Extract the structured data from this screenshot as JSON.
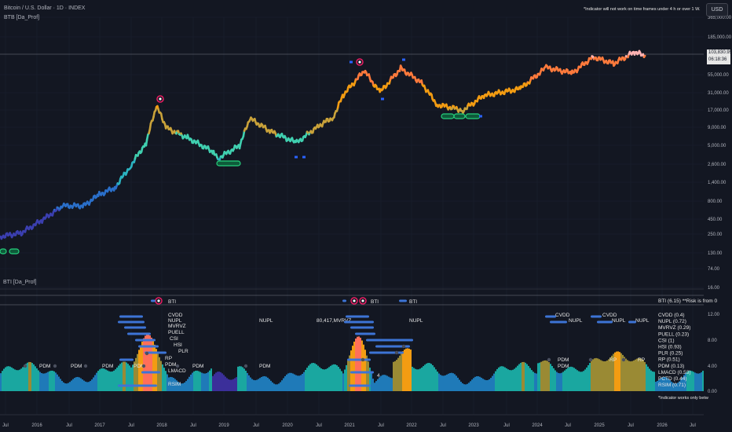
{
  "header": {
    "symbol": "Bitcoin / U.S. Dollar · 1D · INDEX",
    "indicator_top": "BTB [Da_Prof]",
    "indicator_bottom": "BTI [Da_Prof]",
    "currency": "USD",
    "warning": "*Indicator will not work on time frames under 4 h or over 1 W.",
    "bottom_note": "*Indicator works only betw"
  },
  "price_box": {
    "price": "103,830.95",
    "countdown": "06:18:36"
  },
  "colors": {
    "background": "#131722",
    "grid": "#1e222d",
    "accent_green": "#26d07c",
    "accent_red": "#e91e63"
  },
  "bti_legend": {
    "label": "BTI",
    "summary": "BTI (6.15) **Risk is from 0"
  },
  "indicator_values": [
    "CVDD (0.4)",
    "NUPL (0.72)",
    "MVRVZ (0.29)",
    "PUELL (0.23)",
    "CSI (1)",
    "HSI (0.93)",
    "PLR (0.25)",
    "RP (0.51)",
    "PDM (0.13)",
    "LMACD (0.53)",
    "PCTD (0.44)",
    "RSIM (0.71)"
  ],
  "chart_data": {
    "type": "line",
    "series": [
      {
        "values": [
          {
            "x": "2015-06",
            "y": 230
          },
          {
            "x": "2015-10",
            "y": 260
          },
          {
            "x": "2016-02",
            "y": 400
          },
          {
            "x": "2016-06",
            "y": 650
          },
          {
            "x": "2016-10",
            "y": 650
          },
          {
            "x": "2017-01",
            "y": 950
          },
          {
            "x": "2017-04",
            "y": 1200
          },
          {
            "x": "2017-07",
            "y": 2500
          },
          {
            "x": "2017-10",
            "y": 5500
          },
          {
            "x": "2017-12",
            "y": 19000
          },
          {
            "x": "2018-02",
            "y": 9000
          },
          {
            "x": "2018-06",
            "y": 6500
          },
          {
            "x": "2018-11",
            "y": 4000
          },
          {
            "x": "2018-12",
            "y": 3300
          },
          {
            "x": "2019-04",
            "y": 5000
          },
          {
            "x": "2019-06",
            "y": 12500
          },
          {
            "x": "2019-10",
            "y": 8000
          },
          {
            "x": "2020-03",
            "y": 5500
          },
          {
            "x": "2020-07",
            "y": 9500
          },
          {
            "x": "2020-10",
            "y": 13000
          },
          {
            "x": "2020-12",
            "y": 28000
          },
          {
            "x": "2021-04",
            "y": 63000
          },
          {
            "x": "2021-07",
            "y": 30000
          },
          {
            "x": "2021-11",
            "y": 68000
          },
          {
            "x": "2022-03",
            "y": 42000
          },
          {
            "x": "2022-06",
            "y": 20000
          },
          {
            "x": "2022-11",
            "y": 16500
          },
          {
            "x": "2023-03",
            "y": 27000
          },
          {
            "x": "2023-10",
            "y": 34000
          },
          {
            "x": "2024-03",
            "y": 70000
          },
          {
            "x": "2024-08",
            "y": 58000
          },
          {
            "x": "2024-12",
            "y": 100000
          },
          {
            "x": "2025-04",
            "y": 80000
          },
          {
            "x": "2025-08",
            "y": 118000
          },
          {
            "x": "2025-10",
            "y": 103830
          }
        ]
      }
    ],
    "y_scale": "log",
    "y_ticks": [
      "365,000.00",
      "185,000.00",
      "95,000.00",
      "55,000.00",
      "31,000.00",
      "17,000.00",
      "9,000.00",
      "5,000.00",
      "2,600.00",
      "1,400.00",
      "800.00",
      "450.00",
      "250.00",
      "130.00",
      "74.00",
      "16.00"
    ],
    "x_ticks": [
      "Jul",
      "2016",
      "Jul",
      "2017",
      "Jul",
      "2018",
      "Jul",
      "2019",
      "Jul",
      "2020",
      "Jul",
      "2021",
      "Jul",
      "2022",
      "Jul",
      "2023",
      "Jul",
      "2024",
      "Jul",
      "2025",
      "Jul",
      "2026",
      "Jul"
    ],
    "indicator_y_ticks": [
      "12.00",
      "8.00",
      "4.00",
      "0.00"
    ],
    "markers": [
      "BTI",
      "CVDD",
      "NUPL",
      "MVRVZ",
      "PUELL",
      "CSI",
      "HSI",
      "PLR",
      "RP",
      "PDM",
      "LMACD",
      "RSIM"
    ]
  }
}
